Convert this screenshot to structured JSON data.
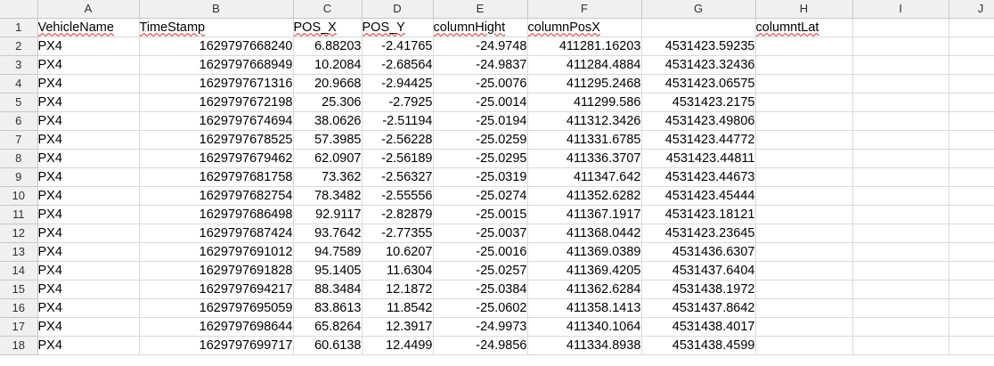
{
  "spreadsheet": {
    "column_headers": [
      "A",
      "B",
      "C",
      "D",
      "E",
      "F",
      "G",
      "H",
      "I",
      "J"
    ],
    "header_row": [
      "VehicleName",
      "TimeStamp",
      "POS_X",
      "POS_Y",
      "columnHight",
      "columnPosX",
      "",
      "columntLat",
      "",
      ""
    ],
    "row_numbers": [
      "1",
      "2",
      "3",
      "4",
      "5",
      "6",
      "7",
      "8",
      "9",
      "10",
      "11",
      "12",
      "13",
      "14",
      "15",
      "16",
      "17",
      "18"
    ],
    "rows": [
      [
        "PX4",
        "1629797668240",
        "6.88203",
        "-2.41765",
        "-24.9748",
        "411281.16203",
        "4531423.59235",
        "",
        "",
        ""
      ],
      [
        "PX4",
        "1629797668949",
        "10.2084",
        "-2.68564",
        "-24.9837",
        "411284.4884",
        "4531423.32436",
        "",
        "",
        ""
      ],
      [
        "PX4",
        "1629797671316",
        "20.9668",
        "-2.94425",
        "-25.0076",
        "411295.2468",
        "4531423.06575",
        "",
        "",
        ""
      ],
      [
        "PX4",
        "1629797672198",
        "25.306",
        "-2.7925",
        "-25.0014",
        "411299.586",
        "4531423.2175",
        "",
        "",
        ""
      ],
      [
        "PX4",
        "1629797674694",
        "38.0626",
        "-2.51194",
        "-25.0194",
        "411312.3426",
        "4531423.49806",
        "",
        "",
        ""
      ],
      [
        "PX4",
        "1629797678525",
        "57.3985",
        "-2.56228",
        "-25.0259",
        "411331.6785",
        "4531423.44772",
        "",
        "",
        ""
      ],
      [
        "PX4",
        "1629797679462",
        "62.0907",
        "-2.56189",
        "-25.0295",
        "411336.3707",
        "4531423.44811",
        "",
        "",
        ""
      ],
      [
        "PX4",
        "1629797681758",
        "73.362",
        "-2.56327",
        "-25.0319",
        "411347.642",
        "4531423.44673",
        "",
        "",
        ""
      ],
      [
        "PX4",
        "1629797682754",
        "78.3482",
        "-2.55556",
        "-25.0274",
        "411352.6282",
        "4531423.45444",
        "",
        "",
        ""
      ],
      [
        "PX4",
        "1629797686498",
        "92.9117",
        "-2.82879",
        "-25.0015",
        "411367.1917",
        "4531423.18121",
        "",
        "",
        ""
      ],
      [
        "PX4",
        "1629797687424",
        "93.7642",
        "-2.77355",
        "-25.0037",
        "411368.0442",
        "4531423.23645",
        "",
        "",
        ""
      ],
      [
        "PX4",
        "1629797691012",
        "94.7589",
        "10.6207",
        "-25.0016",
        "411369.0389",
        "4531436.6307",
        "",
        "",
        ""
      ],
      [
        "PX4",
        "1629797691828",
        "95.1405",
        "11.6304",
        "-25.0257",
        "411369.4205",
        "4531437.6404",
        "",
        "",
        ""
      ],
      [
        "PX4",
        "1629797694217",
        "88.3484",
        "12.1872",
        "-25.0384",
        "411362.6284",
        "4531438.1972",
        "",
        "",
        ""
      ],
      [
        "PX4",
        "1629797695059",
        "83.8613",
        "11.8542",
        "-25.0602",
        "411358.1413",
        "4531437.8642",
        "",
        "",
        ""
      ],
      [
        "PX4",
        "1629797698644",
        "65.8264",
        "12.3917",
        "-24.9973",
        "411340.1064",
        "4531438.4017",
        "",
        "",
        ""
      ],
      [
        "PX4",
        "1629797699717",
        "60.6138",
        "12.4499",
        "-24.9856",
        "411334.8938",
        "4531438.4599",
        "",
        "",
        ""
      ]
    ]
  }
}
